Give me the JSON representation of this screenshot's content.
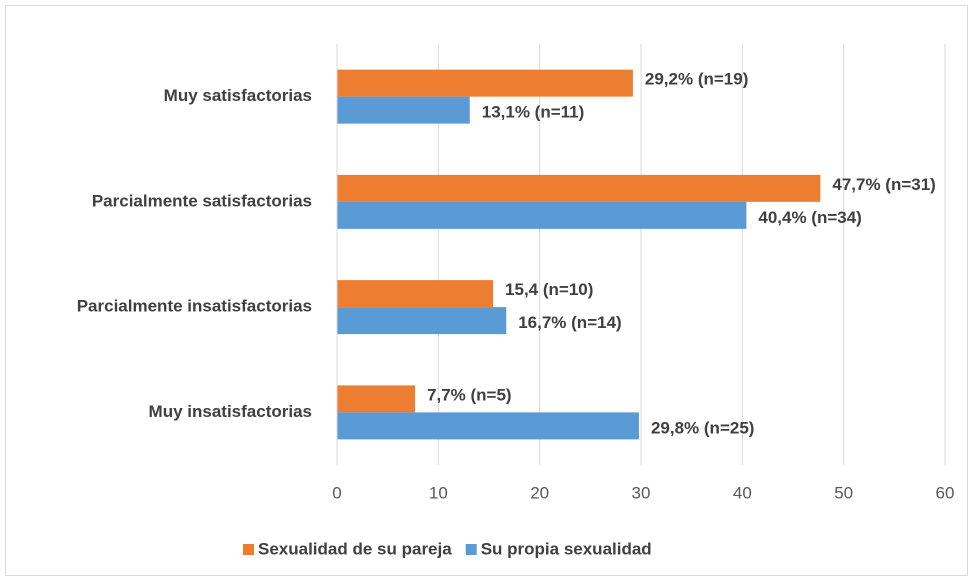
{
  "chart_data": {
    "type": "hbar",
    "categories": [
      "Muy satisfactorias",
      "Parcialmente satisfactorias",
      "Parcialmente insatisfactorias",
      "Muy insatisfactorias"
    ],
    "series": [
      {
        "name": "Sexualidad de su pareja",
        "color": "#ed7d31",
        "values": [
          29.2,
          47.7,
          15.4,
          7.7
        ],
        "value_labels": [
          "29,2% (n=19)",
          "47,7% (n=31)",
          "15,4 (n=10)",
          "7,7% (n=5)"
        ]
      },
      {
        "name": "Su propia sexualidad",
        "color": "#5b9bd5",
        "values": [
          13.1,
          40.4,
          16.7,
          29.8
        ],
        "value_labels": [
          "13,1% (n=11)",
          "40,4% (n=34)",
          "16,7% (n=14)",
          "29,8% (n=25)"
        ]
      }
    ],
    "xlim": [
      0,
      60
    ],
    "xticks": [
      0,
      10,
      20,
      30,
      40,
      50,
      60
    ],
    "grid": true,
    "legend": "bottom"
  }
}
